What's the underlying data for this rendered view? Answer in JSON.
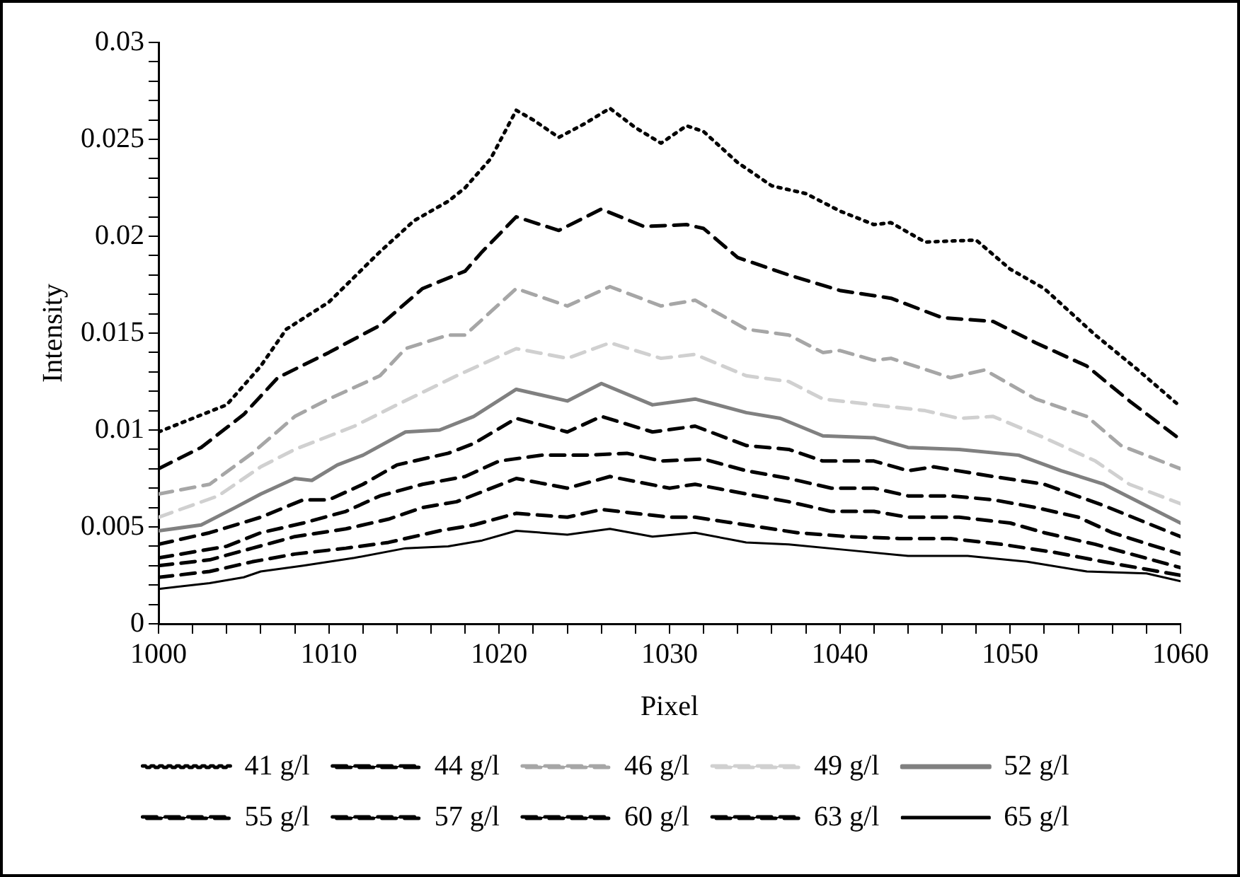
{
  "chart_data": {
    "type": "line",
    "xlabel": "Pixel",
    "ylabel": "Intensity",
    "xlim": [
      1000,
      1060
    ],
    "ylim": [
      0,
      0.03
    ],
    "xticks": [
      1000,
      {
        "value": 1002,
        "label": null
      },
      {
        "value": 1004,
        "label": null
      },
      {
        "value": 1006,
        "label": null
      },
      {
        "value": 1008,
        "label": null
      },
      1010,
      {
        "value": 1012,
        "label": null
      },
      {
        "value": 1014,
        "label": null
      },
      {
        "value": 1016,
        "label": null
      },
      {
        "value": 1018,
        "label": null
      },
      1020,
      {
        "value": 1022,
        "label": null
      },
      {
        "value": 1024,
        "label": null
      },
      {
        "value": 1026,
        "label": null
      },
      {
        "value": 1028,
        "label": null
      },
      1030,
      {
        "value": 1032,
        "label": null
      },
      {
        "value": 1034,
        "label": null
      },
      {
        "value": 1036,
        "label": null
      },
      {
        "value": 1038,
        "label": null
      },
      1040,
      {
        "value": 1042,
        "label": null
      },
      {
        "value": 1044,
        "label": null
      },
      {
        "value": 1046,
        "label": null
      },
      {
        "value": 1048,
        "label": null
      },
      1050,
      {
        "value": 1052,
        "label": null
      },
      {
        "value": 1054,
        "label": null
      },
      {
        "value": 1056,
        "label": null
      },
      {
        "value": 1058,
        "label": null
      },
      1060
    ],
    "yticks": [
      0,
      {
        "value": 0.001,
        "label": null
      },
      {
        "value": 0.002,
        "label": null
      },
      {
        "value": 0.003,
        "label": null
      },
      {
        "value": 0.004,
        "label": null
      },
      0.005,
      {
        "value": 0.006,
        "label": null
      },
      {
        "value": 0.007,
        "label": null
      },
      {
        "value": 0.008,
        "label": null
      },
      {
        "value": 0.009,
        "label": null
      },
      0.01,
      {
        "value": 0.011,
        "label": null
      },
      {
        "value": 0.012,
        "label": null
      },
      {
        "value": 0.013,
        "label": null
      },
      {
        "value": 0.014,
        "label": null
      },
      0.015,
      {
        "value": 0.016,
        "label": null
      },
      {
        "value": 0.017,
        "label": null
      },
      {
        "value": 0.018,
        "label": null
      },
      {
        "value": 0.019,
        "label": null
      },
      0.02,
      {
        "value": 0.021,
        "label": null
      },
      {
        "value": 0.022,
        "label": null
      },
      {
        "value": 0.023,
        "label": null
      },
      {
        "value": 0.024,
        "label": null
      },
      0.025,
      {
        "value": 0.026,
        "label": null
      },
      {
        "value": 0.027,
        "label": null
      },
      {
        "value": 0.028,
        "label": null
      },
      {
        "value": 0.029,
        "label": null
      },
      0.03
    ],
    "grid": false,
    "legend": "bottom",
    "marker": "none",
    "series": [
      {
        "name": "41 g/l",
        "color": "#000000",
        "line_style": "dotted",
        "x": [
          1000,
          1004,
          1006,
          1007.5,
          1010,
          1011.5,
          1013,
          1015,
          1017,
          1018,
          1019.5,
          1021,
          1022,
          1023.5,
          1025,
          1026.5,
          1028,
          1029.5,
          1031,
          1032,
          1034,
          1036,
          1038,
          1040,
          1042,
          1043,
          1045,
          1048,
          1050,
          1052,
          1055,
          1057.5,
          1060
        ],
        "values": [
          0.0099,
          0.0113,
          0.0133,
          0.0152,
          0.0166,
          0.0179,
          0.0192,
          0.0208,
          0.0218,
          0.0225,
          0.024,
          0.0265,
          0.026,
          0.0251,
          0.0258,
          0.0266,
          0.0256,
          0.0248,
          0.0257,
          0.0254,
          0.0238,
          0.0226,
          0.0222,
          0.0213,
          0.0206,
          0.0207,
          0.0197,
          0.0198,
          0.0183,
          0.0173,
          0.0149,
          0.0131,
          0.0112
        ]
      },
      {
        "name": "44 g/l",
        "color": "#000000",
        "line_style": "dashed",
        "x": [
          1000,
          1002.5,
          1005,
          1007,
          1010,
          1013,
          1015.5,
          1018,
          1019,
          1021,
          1023.5,
          1026,
          1028.5,
          1031,
          1032,
          1034,
          1037,
          1040,
          1043,
          1046,
          1049,
          1051.5,
          1054.5,
          1057,
          1060
        ],
        "values": [
          0.008,
          0.0091,
          0.0108,
          0.0127,
          0.014,
          0.0154,
          0.0173,
          0.0182,
          0.0192,
          0.021,
          0.0203,
          0.0214,
          0.0205,
          0.0206,
          0.0204,
          0.0189,
          0.018,
          0.0172,
          0.0168,
          0.0158,
          0.0156,
          0.0145,
          0.0133,
          0.0115,
          0.0095
        ]
      },
      {
        "name": "46 g/l",
        "color": "#a6a6a6",
        "line_style": "dashed",
        "x": [
          1000,
          1003,
          1005.5,
          1008,
          1010,
          1013,
          1014.5,
          1017,
          1018,
          1021,
          1024,
          1026.5,
          1029.5,
          1031.5,
          1034.5,
          1037,
          1039,
          1040,
          1042,
          1043,
          1046.5,
          1048.5,
          1051.5,
          1054.5,
          1056.5,
          1060
        ],
        "values": [
          0.0067,
          0.0072,
          0.0088,
          0.0107,
          0.0116,
          0.0128,
          0.0142,
          0.0149,
          0.0149,
          0.0173,
          0.0164,
          0.0174,
          0.0164,
          0.0167,
          0.0152,
          0.0149,
          0.014,
          0.0141,
          0.0136,
          0.0137,
          0.0127,
          0.0131,
          0.0116,
          0.0107,
          0.0092,
          0.008
        ]
      },
      {
        "name": "49 g/l",
        "color": "#d0d0d0",
        "line_style": "dashed",
        "x": [
          1000,
          1003.5,
          1006,
          1008,
          1011.5,
          1014,
          1017.5,
          1021,
          1024,
          1026.5,
          1029.5,
          1031.5,
          1034.5,
          1037,
          1039,
          1042,
          1045,
          1047,
          1049,
          1052,
          1055,
          1057,
          1060
        ],
        "values": [
          0.0055,
          0.0066,
          0.0081,
          0.009,
          0.0102,
          0.0113,
          0.0128,
          0.0142,
          0.0137,
          0.0145,
          0.0137,
          0.0139,
          0.0128,
          0.0125,
          0.0116,
          0.0113,
          0.011,
          0.0106,
          0.0107,
          0.0096,
          0.0084,
          0.0072,
          0.0062
        ]
      },
      {
        "name": "52 g/l",
        "color": "#808080",
        "line_style": "solid",
        "x": [
          1000,
          1002.5,
          1004.5,
          1006,
          1008,
          1009,
          1010.5,
          1012,
          1014.5,
          1016.5,
          1018.5,
          1021,
          1024,
          1026,
          1029,
          1031.5,
          1034.5,
          1036.5,
          1039,
          1042,
          1044,
          1047,
          1050.5,
          1053,
          1055.5,
          1060
        ],
        "values": [
          0.0048,
          0.0051,
          0.006,
          0.0067,
          0.0075,
          0.0074,
          0.0082,
          0.0087,
          0.0099,
          0.01,
          0.0107,
          0.0121,
          0.0115,
          0.0124,
          0.0113,
          0.0116,
          0.0109,
          0.0106,
          0.0097,
          0.0096,
          0.0091,
          0.009,
          0.0087,
          0.0079,
          0.0072,
          0.0052
        ]
      },
      {
        "name": "55 g/l",
        "color": "#000000",
        "line_style": "dashed",
        "x": [
          1000,
          1003,
          1006,
          1008.5,
          1010,
          1012,
          1014,
          1017,
          1018.5,
          1021,
          1024,
          1026,
          1029,
          1031.5,
          1034.5,
          1037,
          1039,
          1042,
          1044,
          1045.5,
          1049,
          1052,
          1055.5,
          1060
        ],
        "values": [
          0.0041,
          0.0047,
          0.0055,
          0.0064,
          0.0064,
          0.0072,
          0.0082,
          0.0088,
          0.0093,
          0.0106,
          0.0099,
          0.0107,
          0.0099,
          0.0102,
          0.0092,
          0.009,
          0.0084,
          0.0084,
          0.0079,
          0.0081,
          0.0076,
          0.0072,
          0.0061,
          0.0045
        ]
      },
      {
        "name": "57 g/l",
        "color": "#000000",
        "line_style": "dashed",
        "x": [
          1000,
          1004,
          1006,
          1008.5,
          1011,
          1013,
          1015.5,
          1018,
          1020,
          1022.5,
          1025,
          1027.5,
          1029.5,
          1032,
          1034.5,
          1037,
          1039.5,
          1042,
          1044,
          1046.5,
          1049,
          1051.5,
          1054,
          1056,
          1058.5,
          1060
        ],
        "values": [
          0.0034,
          0.004,
          0.0047,
          0.0052,
          0.0058,
          0.0066,
          0.0072,
          0.0076,
          0.0084,
          0.0087,
          0.0087,
          0.0088,
          0.0084,
          0.0085,
          0.0079,
          0.0075,
          0.007,
          0.007,
          0.0066,
          0.0066,
          0.0064,
          0.006,
          0.0055,
          0.0047,
          0.004,
          0.0036
        ]
      },
      {
        "name": "60 g/l",
        "color": "#000000",
        "line_style": "dashed",
        "x": [
          1000,
          1003,
          1005.5,
          1008,
          1011,
          1013.5,
          1015.5,
          1017.5,
          1021,
          1024,
          1026.5,
          1030,
          1031.5,
          1034.5,
          1037,
          1039.5,
          1042,
          1044,
          1047,
          1050,
          1052,
          1055,
          1060
        ],
        "values": [
          0.003,
          0.0033,
          0.0039,
          0.0045,
          0.0049,
          0.0054,
          0.006,
          0.0063,
          0.0075,
          0.007,
          0.0076,
          0.007,
          0.0072,
          0.0067,
          0.0063,
          0.0058,
          0.0058,
          0.0055,
          0.0055,
          0.0052,
          0.0047,
          0.0041,
          0.0029
        ]
      },
      {
        "name": "63 g/l",
        "color": "#000000",
        "line_style": "dashed",
        "x": [
          1000,
          1003,
          1005.5,
          1008,
          1011,
          1013.5,
          1016.5,
          1018.5,
          1021,
          1024,
          1026,
          1030,
          1031.5,
          1034.5,
          1037.5,
          1040.5,
          1043.5,
          1046.5,
          1049.5,
          1052.5,
          1055.5,
          1060
        ],
        "values": [
          0.0024,
          0.0027,
          0.0032,
          0.0036,
          0.0039,
          0.0042,
          0.0048,
          0.0051,
          0.0057,
          0.0055,
          0.0059,
          0.0055,
          0.0055,
          0.0051,
          0.0047,
          0.0045,
          0.0044,
          0.0044,
          0.0041,
          0.0037,
          0.0032,
          0.0025
        ]
      },
      {
        "name": "65 g/l",
        "color": "#000000",
        "line_style": "solid",
        "x": [
          1000,
          1003,
          1005,
          1006,
          1008.5,
          1011.5,
          1014.5,
          1017,
          1019,
          1021,
          1024,
          1026.5,
          1029,
          1031.5,
          1034.5,
          1037,
          1040.5,
          1044,
          1047.5,
          1051,
          1054.5,
          1058,
          1060
        ],
        "values": [
          0.0018,
          0.0021,
          0.0024,
          0.0027,
          0.003,
          0.0034,
          0.0039,
          0.004,
          0.0043,
          0.0048,
          0.0046,
          0.0049,
          0.0045,
          0.0047,
          0.0042,
          0.0041,
          0.0038,
          0.0035,
          0.0035,
          0.0032,
          0.0027,
          0.0026,
          0.0022
        ]
      }
    ]
  }
}
